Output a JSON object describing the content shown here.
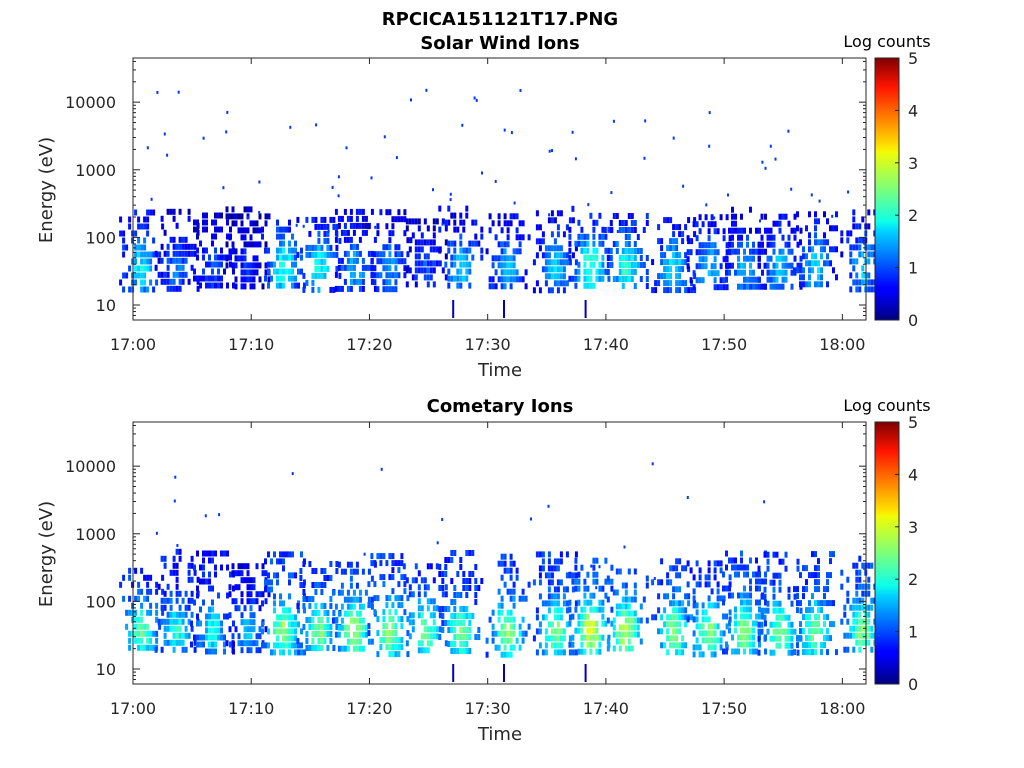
{
  "figure": {
    "title": "RPCICA151121T17.PNG"
  },
  "chart_data": [
    {
      "type": "heatmap",
      "title": "Solar Wind Ions",
      "xlabel": "Time",
      "ylabel": "Energy (eV)",
      "xtick_labels": [
        "17:00",
        "17:10",
        "17:20",
        "17:30",
        "17:40",
        "17:50",
        "18:00"
      ],
      "xlim": [
        "17:00",
        "18:02"
      ],
      "ytick_labels": [
        "10",
        "100",
        "1000",
        "10000"
      ],
      "ytick_values": [
        10,
        100,
        1000,
        10000
      ],
      "ylim": [
        6,
        45000
      ],
      "yscale": "log",
      "colorbar": {
        "label": "Log counts",
        "ticks": [
          "0",
          "1",
          "2",
          "3",
          "4",
          "5"
        ],
        "range": [
          0,
          5
        ],
        "colormap": "jet"
      },
      "bursts": [
        {
          "t": "17:00",
          "peak_log_counts": 1.8
        },
        {
          "t": "17:03",
          "peak_log_counts": 1.2
        },
        {
          "t": "17:06",
          "peak_log_counts": 1.0
        },
        {
          "t": "17:09",
          "peak_log_counts": 0.8
        },
        {
          "t": "17:12",
          "peak_log_counts": 2.0
        },
        {
          "t": "17:15",
          "peak_log_counts": 1.9
        },
        {
          "t": "17:18",
          "peak_log_counts": 1.5
        },
        {
          "t": "17:21",
          "peak_log_counts": 1.4
        },
        {
          "t": "17:24",
          "peak_log_counts": 1.0
        },
        {
          "t": "17:27",
          "peak_log_counts": 1.6
        },
        {
          "t": "17:31",
          "peak_log_counts": 1.5
        },
        {
          "t": "17:35",
          "peak_log_counts": 1.6
        },
        {
          "t": "17:38",
          "peak_log_counts": 2.2
        },
        {
          "t": "17:41",
          "peak_log_counts": 2.0
        },
        {
          "t": "17:45",
          "peak_log_counts": 1.7
        },
        {
          "t": "17:48",
          "peak_log_counts": 1.6
        },
        {
          "t": "17:51",
          "peak_log_counts": 1.5
        },
        {
          "t": "17:54",
          "peak_log_counts": 1.6
        },
        {
          "t": "17:57",
          "peak_log_counts": 1.7
        },
        {
          "t": "18:01",
          "peak_log_counts": 1.6
        }
      ]
    },
    {
      "type": "heatmap",
      "title": "Cometary Ions",
      "xlabel": "Time",
      "ylabel": "Energy (eV)",
      "xtick_labels": [
        "17:00",
        "17:10",
        "17:20",
        "17:30",
        "17:40",
        "17:50",
        "18:00"
      ],
      "xlim": [
        "17:00",
        "18:02"
      ],
      "ytick_labels": [
        "10",
        "100",
        "1000",
        "10000"
      ],
      "ytick_values": [
        10,
        100,
        1000,
        10000
      ],
      "ylim": [
        6,
        45000
      ],
      "yscale": "log",
      "colorbar": {
        "label": "Log counts",
        "ticks": [
          "0",
          "1",
          "2",
          "3",
          "4",
          "5"
        ],
        "range": [
          0,
          5
        ],
        "colormap": "jet"
      },
      "bursts": [
        {
          "t": "17:00",
          "peak_log_counts": 2.4
        },
        {
          "t": "17:03",
          "peak_log_counts": 2.0
        },
        {
          "t": "17:06",
          "peak_log_counts": 1.9
        },
        {
          "t": "17:09",
          "peak_log_counts": 1.5
        },
        {
          "t": "17:12",
          "peak_log_counts": 2.6
        },
        {
          "t": "17:15",
          "peak_log_counts": 2.5
        },
        {
          "t": "17:18",
          "peak_log_counts": 2.7
        },
        {
          "t": "17:21",
          "peak_log_counts": 2.6
        },
        {
          "t": "17:24",
          "peak_log_counts": 2.4
        },
        {
          "t": "17:27",
          "peak_log_counts": 2.4
        },
        {
          "t": "17:31",
          "peak_log_counts": 2.6
        },
        {
          "t": "17:35",
          "peak_log_counts": 2.5
        },
        {
          "t": "17:38",
          "peak_log_counts": 2.9
        },
        {
          "t": "17:41",
          "peak_log_counts": 2.8
        },
        {
          "t": "17:45",
          "peak_log_counts": 2.6
        },
        {
          "t": "17:48",
          "peak_log_counts": 2.5
        },
        {
          "t": "17:51",
          "peak_log_counts": 2.6
        },
        {
          "t": "17:54",
          "peak_log_counts": 2.5
        },
        {
          "t": "17:57",
          "peak_log_counts": 2.5
        },
        {
          "t": "18:01",
          "peak_log_counts": 2.5
        }
      ]
    }
  ]
}
